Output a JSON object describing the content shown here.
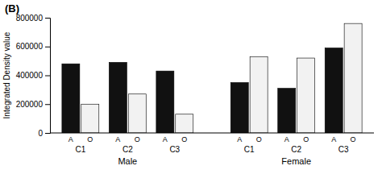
{
  "chart_data": {
    "type": "bar",
    "title": "(B)",
    "ylabel": "Integrated Density value",
    "categories": [
      "C1",
      "C2",
      "C3",
      "C1",
      "C2",
      "C3"
    ],
    "category_groups": [
      "Male",
      "Male",
      "Male",
      "Female",
      "Female",
      "Female"
    ],
    "series": [
      {
        "name": "A",
        "color": "#111111",
        "values": [
          480000,
          490000,
          430000,
          350000,
          310000,
          590000
        ]
      },
      {
        "name": "O",
        "color": "#f2f2f2",
        "values": [
          200000,
          270000,
          130000,
          530000,
          520000,
          760000
        ]
      }
    ],
    "ylim": [
      0,
      800000
    ],
    "yticks": [
      0,
      200000,
      400000,
      600000,
      800000
    ],
    "grid": false
  }
}
